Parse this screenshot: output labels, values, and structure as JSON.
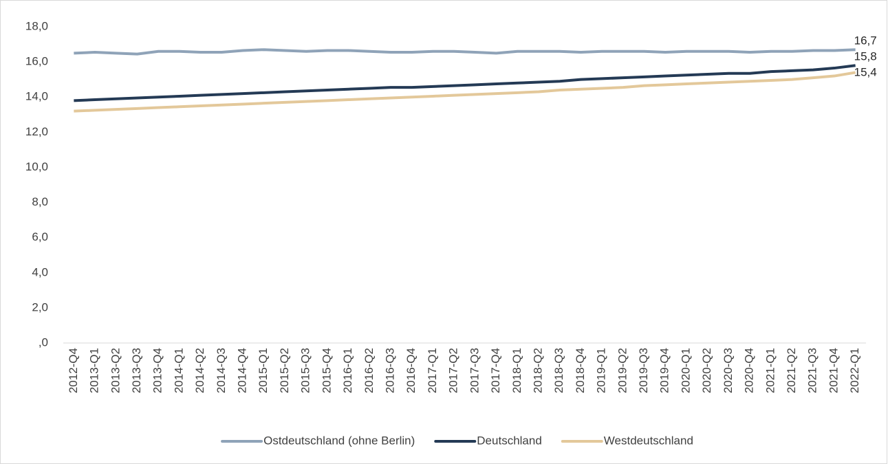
{
  "chart_data": {
    "type": "line",
    "categories": [
      "2012-Q4",
      "2013-Q1",
      "2013-Q2",
      "2013-Q3",
      "2013-Q4",
      "2014-Q1",
      "2014-Q2",
      "2014-Q3",
      "2014-Q4",
      "2015-Q1",
      "2015-Q2",
      "2015-Q3",
      "2015-Q4",
      "2016-Q1",
      "2016-Q2",
      "2016-Q3",
      "2016-Q4",
      "2017-Q1",
      "2017-Q2",
      "2017-Q3",
      "2017-Q4",
      "2018-Q1",
      "2018-Q2",
      "2018-Q3",
      "2018-Q4",
      "2019-Q1",
      "2019-Q2",
      "2019-Q3",
      "2019-Q4",
      "2020-Q1",
      "2020-Q2",
      "2020-Q3",
      "2020-Q4",
      "2021-Q1",
      "2021-Q2",
      "2021-Q3",
      "2021-Q4",
      "2022-Q1"
    ],
    "series": [
      {
        "name": "Ostdeutschland (ohne Berlin)",
        "color": "#8fa3b8",
        "values": [
          16.5,
          16.55,
          16.5,
          16.45,
          16.6,
          16.6,
          16.55,
          16.55,
          16.65,
          16.7,
          16.65,
          16.6,
          16.65,
          16.65,
          16.6,
          16.55,
          16.55,
          16.6,
          16.6,
          16.55,
          16.5,
          16.6,
          16.6,
          16.6,
          16.55,
          16.6,
          16.6,
          16.6,
          16.55,
          16.6,
          16.6,
          16.6,
          16.55,
          16.6,
          16.6,
          16.65,
          16.65,
          16.7
        ],
        "value_labels": [
          null,
          null,
          null,
          null,
          null,
          null,
          null,
          null,
          null,
          null,
          null,
          null,
          null,
          null,
          null,
          null,
          null,
          null,
          null,
          null,
          null,
          null,
          null,
          null,
          null,
          null,
          null,
          null,
          null,
          null,
          null,
          null,
          null,
          null,
          null,
          null,
          null,
          "16,7"
        ]
      },
      {
        "name": "Deutschland",
        "color": "#243a55",
        "values": [
          13.8,
          13.85,
          13.9,
          13.95,
          14.0,
          14.05,
          14.1,
          14.15,
          14.2,
          14.25,
          14.3,
          14.35,
          14.4,
          14.45,
          14.5,
          14.55,
          14.55,
          14.6,
          14.65,
          14.7,
          14.75,
          14.8,
          14.85,
          14.9,
          15.0,
          15.05,
          15.1,
          15.15,
          15.2,
          15.25,
          15.3,
          15.35,
          15.35,
          15.45,
          15.5,
          15.55,
          15.65,
          15.8
        ],
        "value_labels": [
          null,
          null,
          null,
          null,
          null,
          null,
          null,
          null,
          null,
          null,
          null,
          null,
          null,
          null,
          null,
          null,
          null,
          null,
          null,
          null,
          null,
          null,
          null,
          null,
          null,
          null,
          null,
          null,
          null,
          null,
          null,
          null,
          null,
          null,
          null,
          null,
          null,
          "15,8"
        ]
      },
      {
        "name": "Westdeutschland",
        "color": "#e3c89a",
        "values": [
          13.2,
          13.25,
          13.3,
          13.35,
          13.4,
          13.45,
          13.5,
          13.55,
          13.6,
          13.65,
          13.7,
          13.75,
          13.8,
          13.85,
          13.9,
          13.95,
          14.0,
          14.05,
          14.1,
          14.15,
          14.2,
          14.25,
          14.3,
          14.4,
          14.45,
          14.5,
          14.55,
          14.65,
          14.7,
          14.75,
          14.8,
          14.85,
          14.9,
          14.95,
          15.0,
          15.1,
          15.2,
          15.4
        ],
        "value_labels": [
          null,
          null,
          null,
          null,
          null,
          null,
          null,
          null,
          null,
          null,
          null,
          null,
          null,
          null,
          null,
          null,
          null,
          null,
          null,
          null,
          null,
          null,
          null,
          null,
          null,
          null,
          null,
          null,
          null,
          null,
          null,
          null,
          null,
          null,
          null,
          null,
          null,
          "15,4"
        ]
      }
    ],
    "ylim": [
      0,
      18
    ],
    "yticks": [
      {
        "value": 0,
        "label": ",0"
      },
      {
        "value": 2,
        "label": "2,0"
      },
      {
        "value": 4,
        "label": "4,0"
      },
      {
        "value": 6,
        "label": "6,0"
      },
      {
        "value": 8,
        "label": "8,0"
      },
      {
        "value": 10,
        "label": "10,0"
      },
      {
        "value": 12,
        "label": "12,0"
      },
      {
        "value": 14,
        "label": "14,0"
      },
      {
        "value": 16,
        "label": "16,0"
      },
      {
        "value": 18,
        "label": "18,0"
      }
    ],
    "grid": false,
    "legend": "bottom"
  }
}
